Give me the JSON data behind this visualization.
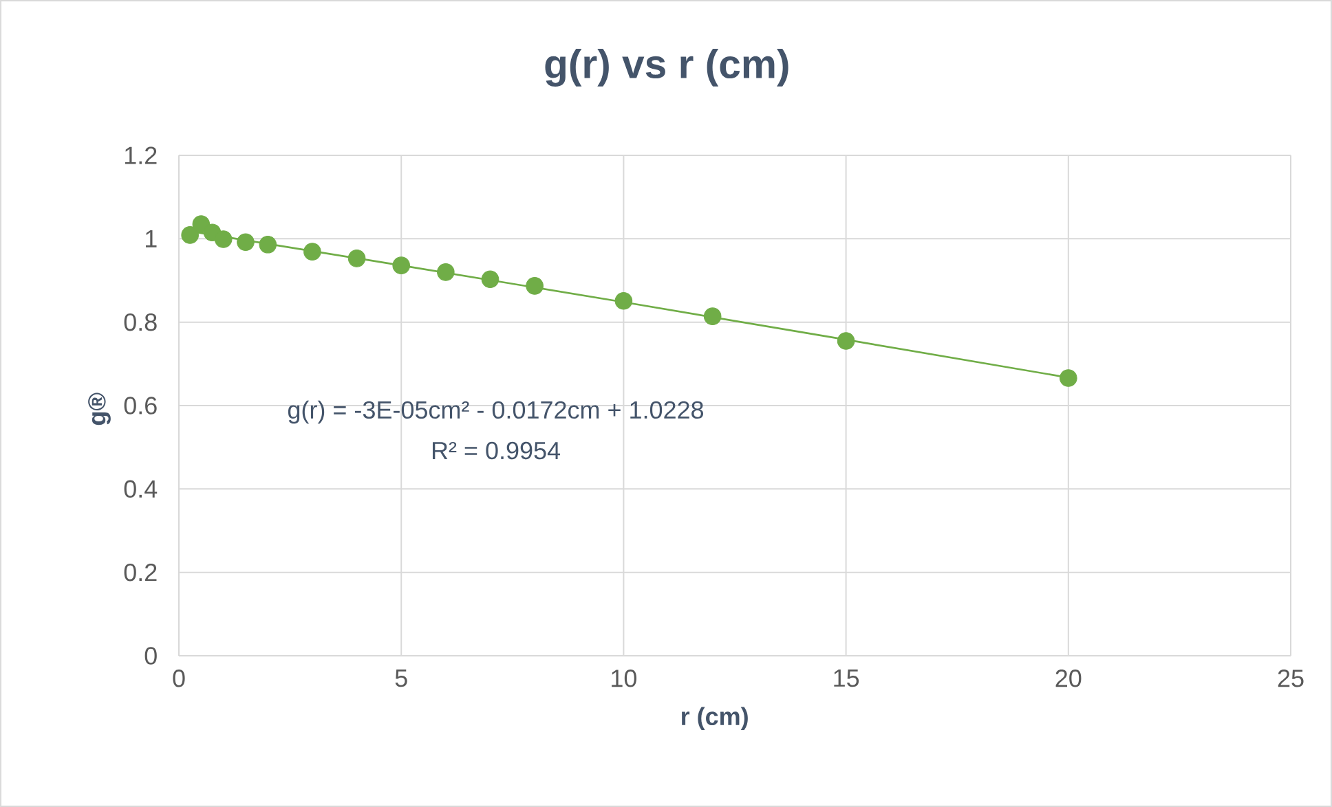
{
  "chart_data": {
    "type": "scatter",
    "title": "g(r) vs r (cm)",
    "xlabel": "r (cm)",
    "ylabel": "g®",
    "series": [
      {
        "color": "#70ad47",
        "marker": "circle",
        "x": [
          0.25,
          0.5,
          0.75,
          1,
          1.5,
          2,
          3,
          4,
          5,
          6,
          7,
          8,
          10,
          12,
          15,
          20
        ],
        "values": [
          1.009,
          1.035,
          1.015,
          0.999,
          0.992,
          0.986,
          0.969,
          0.953,
          0.936,
          0.92,
          0.903,
          0.887,
          0.851,
          0.814,
          0.755,
          0.666
        ]
      },
      {
        "type": "line",
        "color": "#70ad47",
        "marker": "none",
        "x": [
          0.25,
          5,
          10,
          15,
          20
        ],
        "values": [
          1.018,
          0.936,
          0.848,
          0.758,
          0.667
        ]
      }
    ],
    "annotations": [
      "g(r)  = -3E-05cm² - 0.0172cm + 1.0228",
      "R² = 0.9954"
    ],
    "xlim": [
      0,
      25
    ],
    "xticks": [
      0,
      5,
      10,
      15,
      20,
      25
    ],
    "ylim": [
      0,
      1.2
    ],
    "yticks": [
      0,
      0.2,
      0.4,
      0.6,
      0.8,
      1,
      1.2
    ],
    "grid": true
  }
}
